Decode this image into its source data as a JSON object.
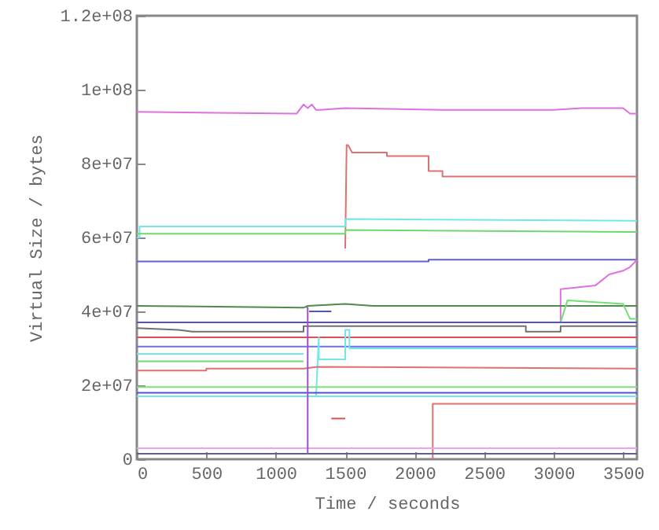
{
  "chart_data": {
    "type": "line",
    "xlabel": "Time / seconds",
    "ylabel": "Virtual Size / bytes",
    "xlim": [
      0,
      3600
    ],
    "xticks": [
      0,
      500,
      1000,
      1500,
      2000,
      2500,
      3000,
      3500
    ],
    "ylim": [
      0,
      120000000
    ],
    "yticks": [
      0,
      {
        "value": 20000000,
        "label": "2e+07"
      },
      {
        "value": 40000000,
        "label": "4e+07"
      },
      {
        "value": 60000000,
        "label": "6e+07"
      },
      {
        "value": 80000000,
        "label": "8e+07"
      },
      {
        "value": 100000000,
        "label": "1e+08"
      },
      {
        "value": 120000000,
        "label": "1.2e+08"
      }
    ],
    "grid": false,
    "series": [
      {
        "color": "#e070e0",
        "x": [
          0,
          1150,
          1200,
          1230,
          1260,
          1290,
          1320,
          1500,
          2200,
          3000,
          3200,
          3500,
          3550,
          3600
        ],
        "values": [
          94000000,
          93500000,
          96000000,
          95000000,
          96000000,
          94500000,
          94500000,
          95000000,
          94500000,
          94500000,
          95000000,
          95000000,
          93500000,
          93500000
        ]
      },
      {
        "color": "#e07070",
        "x": [
          1500,
          1510,
          1520,
          1550,
          1800,
          1800,
          2100,
          2100,
          2200,
          2200,
          3600
        ],
        "values": [
          57000000,
          85000000,
          85000000,
          83000000,
          83000000,
          82000000,
          82000000,
          78000000,
          78000000,
          76500000,
          76500000
        ]
      },
      {
        "color": "#70e8e8",
        "x": [
          0,
          20,
          20,
          1500,
          1500,
          3600
        ],
        "values": [
          60000000,
          60000000,
          63000000,
          63000000,
          65000000,
          64500000
        ]
      },
      {
        "color": "#70d870",
        "x": [
          0,
          1500,
          1500,
          3600
        ],
        "values": [
          61000000,
          61000000,
          62000000,
          61500000
        ]
      },
      {
        "color": "#6060d0",
        "x": [
          0,
          2100,
          2100,
          3600
        ],
        "values": [
          53500000,
          53500000,
          54000000,
          54000000
        ]
      },
      {
        "color": "#e070e0",
        "x": [
          3000,
          3050,
          3050,
          3300,
          3400,
          3500,
          3550,
          3600
        ],
        "values": [
          37000000,
          37000000,
          46000000,
          47000000,
          50000000,
          51000000,
          52000000,
          54000000
        ]
      },
      {
        "color": "#508a50",
        "x": [
          0,
          1200,
          1230,
          1500,
          1700,
          3600
        ],
        "values": [
          41500000,
          41000000,
          41500000,
          42000000,
          41500000,
          41500000
        ]
      },
      {
        "color": "#70e070",
        "x": [
          3050,
          3100,
          3300,
          3500,
          3550,
          3600
        ],
        "values": [
          37000000,
          43000000,
          42500000,
          42000000,
          38000000,
          38000000
        ]
      },
      {
        "color": "#5050d0",
        "x": [
          0,
          3600
        ],
        "values": [
          37000000,
          37000000
        ]
      },
      {
        "color": "#707070",
        "x": [
          0,
          300,
          400,
          1200,
          1200,
          2800,
          2800,
          3050,
          3050,
          3600
        ],
        "values": [
          35500000,
          35000000,
          34500000,
          34500000,
          36000000,
          36000000,
          34500000,
          34500000,
          36000000,
          36000000
        ]
      },
      {
        "color": "#e05050",
        "x": [
          0,
          3600
        ],
        "values": [
          33000000,
          33000000
        ]
      },
      {
        "color": "#7070e0",
        "x": [
          0,
          3600
        ],
        "values": [
          30500000,
          30500000
        ]
      },
      {
        "color": "#70e8e8",
        "x": [
          0,
          1200
        ],
        "values": [
          28500000,
          28500000
        ]
      },
      {
        "color": "#70e8e8",
        "x": [
          1290,
          1310,
          1310,
          1500,
          1500,
          1530,
          1530,
          3600
        ],
        "values": [
          17000000,
          33000000,
          27000000,
          27000000,
          35000000,
          35000000,
          30000000,
          30000000
        ]
      },
      {
        "color": "#70d870",
        "x": [
          0,
          1200
        ],
        "values": [
          26500000,
          26500000
        ]
      },
      {
        "color": "#e07070",
        "x": [
          0,
          500,
          500,
          1200,
          1300,
          3600
        ],
        "values": [
          24000000,
          24000000,
          24500000,
          24500000,
          25000000,
          24500000
        ]
      },
      {
        "color": "#80e080",
        "x": [
          0,
          3600
        ],
        "values": [
          19500000,
          19500000
        ]
      },
      {
        "color": "#5050d0",
        "x": [
          0,
          3600
        ],
        "values": [
          18000000,
          18000000
        ]
      },
      {
        "color": "#70e8e8",
        "x": [
          0,
          3600
        ],
        "values": [
          17000000,
          17000000
        ]
      },
      {
        "color": "#e05050",
        "x": [
          1400,
          1500
        ],
        "values": [
          11000000,
          11000000
        ]
      },
      {
        "color": "#e07070",
        "x": [
          2130,
          2130,
          3600
        ],
        "values": [
          0,
          15000000,
          15000000
        ]
      },
      {
        "color": "#f0a0f0",
        "x": [
          0,
          3600
        ],
        "values": [
          3000000,
          3000000
        ]
      },
      {
        "color": "#606090",
        "x": [
          0,
          3600
        ],
        "values": [
          1500000,
          1500000
        ]
      },
      {
        "color": "#a050c0",
        "x": [
          1220,
          1230,
          1230
        ],
        "values": [
          41000000,
          41000000,
          1500000
        ]
      },
      {
        "color": "#5050d0",
        "x": [
          1240,
          1400
        ],
        "values": [
          40000000,
          40000000
        ]
      }
    ]
  }
}
